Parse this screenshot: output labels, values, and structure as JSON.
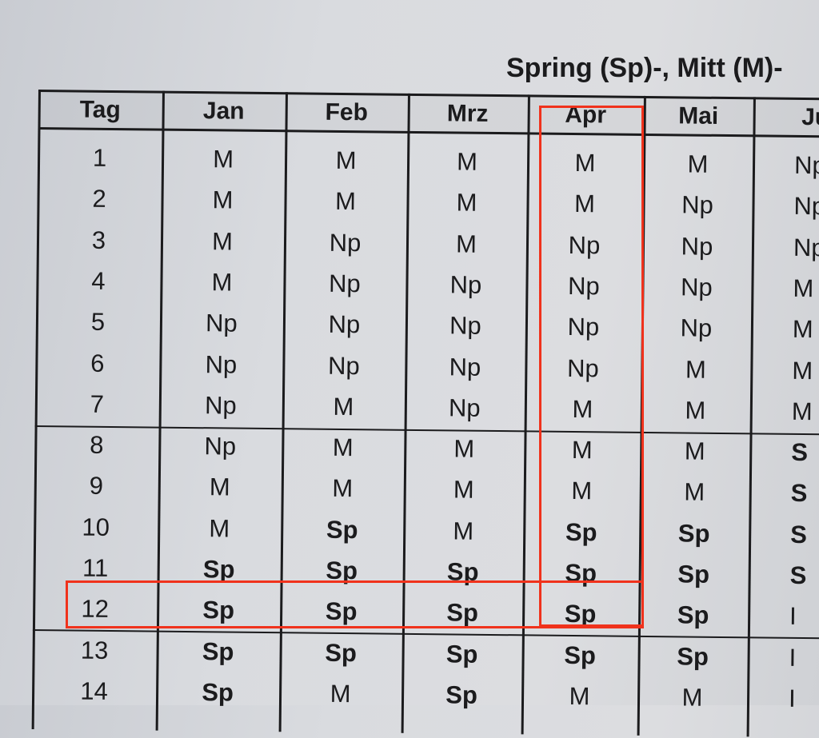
{
  "title": "Spring (Sp)-, Mitt (M)-",
  "columns": [
    "Tag",
    "Jan",
    "Feb",
    "Mrz",
    "Apr",
    "Mai",
    "Ju"
  ],
  "rows": [
    [
      "1",
      "M",
      "M",
      "M",
      "M",
      "M",
      "Np"
    ],
    [
      "2",
      "M",
      "M",
      "M",
      "M",
      "Np",
      "Np"
    ],
    [
      "3",
      "M",
      "Np",
      "M",
      "Np",
      "Np",
      "Np"
    ],
    [
      "4",
      "M",
      "Np",
      "Np",
      "Np",
      "Np",
      "M"
    ],
    [
      "5",
      "Np",
      "Np",
      "Np",
      "Np",
      "Np",
      "M"
    ],
    [
      "6",
      "Np",
      "Np",
      "Np",
      "Np",
      "M",
      "M"
    ],
    [
      "7",
      "Np",
      "M",
      "Np",
      "M",
      "M",
      "M"
    ],
    [
      "8",
      "Np",
      "M",
      "M",
      "M",
      "M",
      "S"
    ],
    [
      "9",
      "M",
      "M",
      "M",
      "M",
      "M",
      "S"
    ],
    [
      "10",
      "M",
      "Sp",
      "M",
      "Sp",
      "Sp",
      "S"
    ],
    [
      "11",
      "Sp",
      "Sp",
      "Sp",
      "Sp",
      "Sp",
      "S"
    ],
    [
      "12",
      "Sp",
      "Sp",
      "Sp",
      "Sp",
      "Sp",
      "I"
    ],
    [
      "13",
      "Sp",
      "Sp",
      "Sp",
      "Sp",
      "Sp",
      "I"
    ],
    [
      "14",
      "Sp",
      "M",
      "Sp",
      "M",
      "M",
      "I"
    ]
  ],
  "highlight": {
    "color": "#f0321c",
    "column": "Apr",
    "row": "12"
  }
}
